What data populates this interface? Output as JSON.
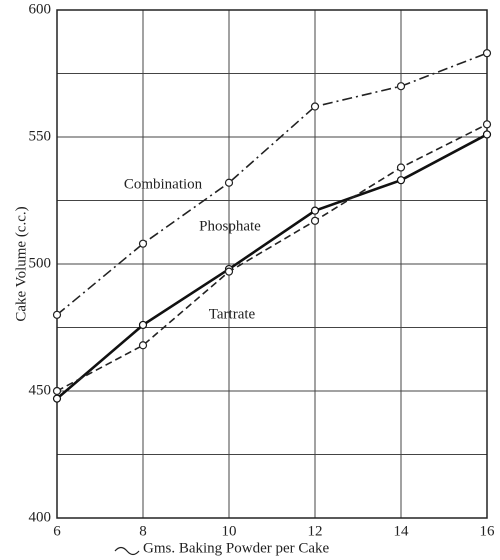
{
  "chart_data": {
    "type": "line",
    "x_label": "Gms. Baking Powder per Cake",
    "y_label": "Cake Volume (c.c.)",
    "x": [
      6,
      8,
      10,
      12,
      14,
      16
    ],
    "series": [
      {
        "name": "Combination",
        "color": "#222222",
        "style": "dash-dot",
        "values": [
          480,
          508,
          532,
          562,
          570,
          583
        ]
      },
      {
        "name": "Phosphate",
        "color": "#111111",
        "style": "solid",
        "values": [
          447,
          476,
          498,
          521,
          533,
          551
        ]
      },
      {
        "name": "Tartrate",
        "color": "#222222",
        "style": "dashed",
        "values": [
          450,
          468,
          497,
          517,
          538,
          555
        ]
      }
    ],
    "xlim": [
      6,
      16
    ],
    "xticks": [
      6,
      8,
      10,
      12,
      14,
      16
    ],
    "ylim": [
      400,
      600
    ],
    "yticks": [
      400,
      450,
      500,
      550,
      600
    ],
    "minor_yticks": [
      425,
      475,
      525,
      575
    ],
    "grid": true
  }
}
